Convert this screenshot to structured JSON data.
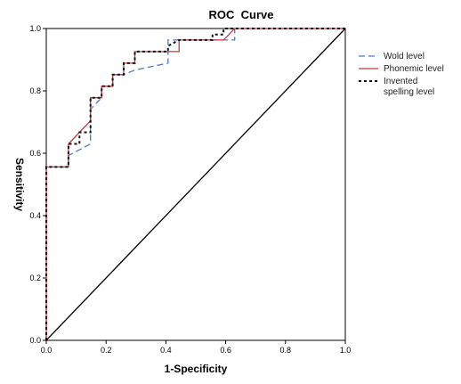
{
  "chart_data": {
    "type": "line",
    "title": "ROC  Curve",
    "xlabel": "1-Specificity",
    "ylabel": "Sensitivity",
    "xlim": [
      0,
      1
    ],
    "ylim": [
      0,
      1
    ],
    "x_ticks": [
      "0.0",
      "0.2",
      "0.4",
      "0.6",
      "0.8",
      "1.0"
    ],
    "y_ticks": [
      "0.0",
      "0.2",
      "0.4",
      "0.6",
      "0.8",
      "1.0"
    ],
    "grid": false,
    "legend_position": "right",
    "series": [
      {
        "name": "Wold level",
        "color": "#4a7ac9",
        "style": "dashed",
        "x": [
          0,
          0,
          0.074,
          0.074,
          0.148,
          0.148,
          0.185,
          0.185,
          0.222,
          0.222,
          0.259,
          0.259,
          0.296,
          0.407,
          0.407,
          0.444,
          0.444,
          0.593,
          0.593,
          0.63,
          0.63,
          1
        ],
        "y": [
          0,
          0.556,
          0.556,
          0.593,
          0.63,
          0.741,
          0.778,
          0.815,
          0.815,
          0.852,
          0.852,
          0.852,
          0.867,
          0.889,
          0.963,
          0.963,
          0.963,
          0.963,
          0.963,
          0.963,
          1,
          1
        ]
      },
      {
        "name": "Phonemic level",
        "color": "#c8393a",
        "style": "solid",
        "x": [
          0,
          0,
          0.074,
          0.074,
          0.148,
          0.148,
          0.185,
          0.185,
          0.222,
          0.222,
          0.259,
          0.259,
          0.296,
          0.296,
          0.444,
          0.444,
          0.593,
          0.63,
          1
        ],
        "y": [
          0,
          0.556,
          0.556,
          0.63,
          0.704,
          0.778,
          0.778,
          0.815,
          0.815,
          0.852,
          0.852,
          0.889,
          0.889,
          0.926,
          0.926,
          0.963,
          0.963,
          1,
          1
        ]
      },
      {
        "name": " Invented\nspelling level",
        "color": "#111111",
        "style": "dotted",
        "x": [
          0,
          0,
          0.074,
          0.074,
          0.111,
          0.111,
          0.148,
          0.148,
          0.185,
          0.185,
          0.222,
          0.222,
          0.259,
          0.259,
          0.296,
          0.296,
          0.333,
          0.333,
          0.37,
          0.37,
          0.407,
          0.407,
          0.444,
          0.556,
          0.556,
          0.593,
          0.593,
          0.63,
          0.63,
          1
        ],
        "y": [
          0,
          0.556,
          0.556,
          0.63,
          0.63,
          0.667,
          0.667,
          0.778,
          0.778,
          0.815,
          0.815,
          0.852,
          0.852,
          0.889,
          0.889,
          0.926,
          0.926,
          0.926,
          0.926,
          0.926,
          0.926,
          0.944,
          0.963,
          0.963,
          0.981,
          0.981,
          1,
          1,
          1,
          1
        ]
      },
      {
        "name": "",
        "color": "#000000",
        "style": "solid",
        "x": [
          0,
          1
        ],
        "y": [
          0,
          1
        ]
      }
    ]
  }
}
